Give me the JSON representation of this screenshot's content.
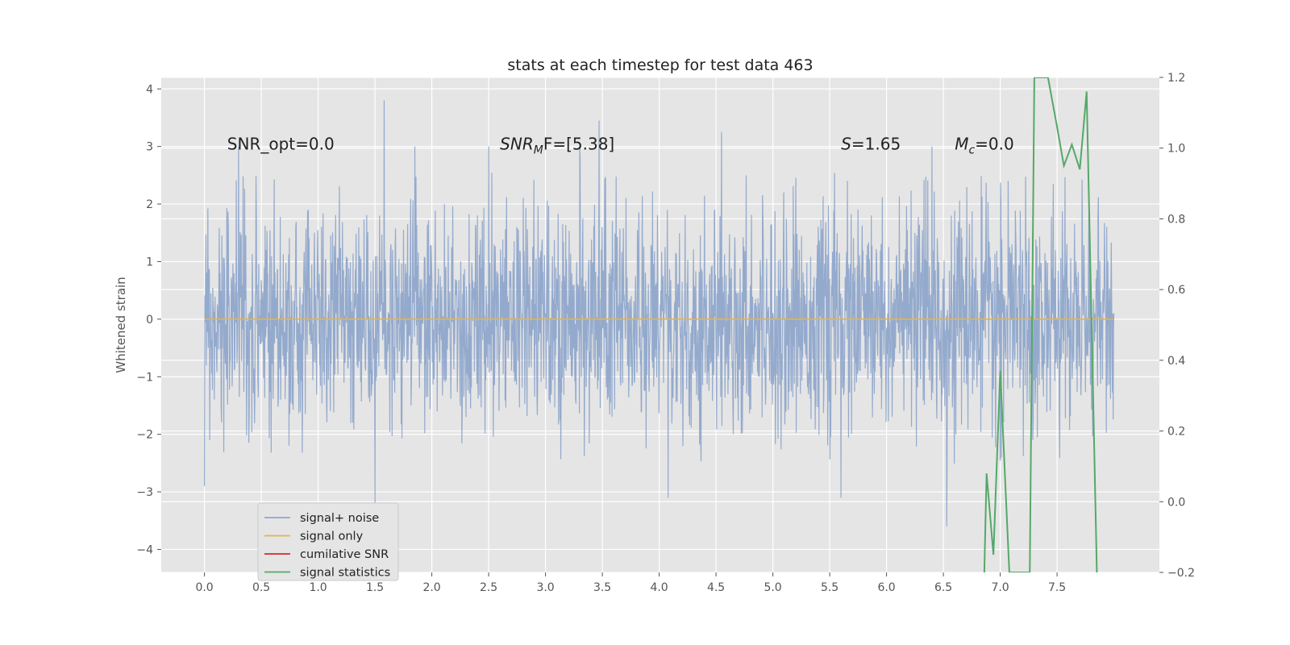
{
  "chart_data": {
    "type": "line",
    "title": "stats at each timestep for test data 463",
    "xlabel": "",
    "ylabel": "Whitened strain",
    "y2label": "",
    "xlim": [
      -0.38,
      8.4
    ],
    "ylim": [
      -4.4,
      4.2
    ],
    "y2lim": [
      -0.2,
      1.2
    ],
    "x_ticks": [
      0.0,
      0.5,
      1.0,
      1.5,
      2.0,
      2.5,
      3.0,
      3.5,
      4.0,
      4.5,
      5.0,
      5.5,
      6.0,
      6.5,
      7.0,
      7.5
    ],
    "x_tick_labels": [
      "0.0",
      "0.5",
      "1.0",
      "1.5",
      "2.0",
      "2.5",
      "3.0",
      "3.5",
      "4.0",
      "4.5",
      "5.0",
      "5.5",
      "6.0",
      "6.5",
      "7.0",
      "7.5"
    ],
    "y_ticks": [
      -4,
      -3,
      -2,
      -1,
      0,
      1,
      2,
      3,
      4
    ],
    "y_tick_labels": [
      "−4",
      "−3",
      "−2",
      "−1",
      "0",
      "1",
      "2",
      "3",
      "4"
    ],
    "y2_ticks": [
      -0.2,
      0.0,
      0.2,
      0.4,
      0.6,
      0.8,
      1.0,
      1.2
    ],
    "y2_tick_labels": [
      "−0.2",
      "0.0",
      "0.2",
      "0.4",
      "0.6",
      "0.8",
      "1.0",
      "1.2"
    ],
    "grid": true,
    "legend_position": "lower-left",
    "annotations": [
      {
        "x": 0.2,
        "y": 3.0,
        "text": "SNR_opt=0.0"
      },
      {
        "x": 2.6,
        "y": 3.0,
        "text": "SNR_MF=[5.38]",
        "main": "SNR",
        "sub": "M",
        "tail": "F=[5.38]"
      },
      {
        "x": 5.6,
        "y": 3.0,
        "text": "S=1.65",
        "main": "S",
        "tail": "=1.65"
      },
      {
        "x": 6.6,
        "y": 3.0,
        "text": "M_c=0.0",
        "main": "M",
        "sub": "c",
        "tail": "=0.0"
      }
    ],
    "series": [
      {
        "name": "signal+ noise",
        "color": "#8fa6cb",
        "axis": "left",
        "description": "dense whitened noise, approx. Gaussian, t from 0.0 to 8.0 s",
        "x_range": [
          0.0,
          8.0
        ],
        "envelope_upper": 2.0,
        "envelope_lower": -2.0,
        "peaks": [
          {
            "x": 0.0,
            "y": -2.9
          },
          {
            "x": 0.3,
            "y": 3.0
          },
          {
            "x": 1.58,
            "y": 3.8
          },
          {
            "x": 1.5,
            "y": -3.2
          },
          {
            "x": 1.85,
            "y": 3.0
          },
          {
            "x": 2.5,
            "y": 3.0
          },
          {
            "x": 3.47,
            "y": 3.45
          },
          {
            "x": 3.3,
            "y": 3.0
          },
          {
            "x": 4.08,
            "y": -3.1
          },
          {
            "x": 4.55,
            "y": 3.25
          },
          {
            "x": 5.6,
            "y": -3.1
          },
          {
            "x": 6.53,
            "y": -3.6
          },
          {
            "x": 6.4,
            "y": 3.0
          }
        ]
      },
      {
        "name": "signal only",
        "color": "#e8b34a",
        "axis": "left",
        "x": [
          0.0,
          8.0
        ],
        "y": [
          0.0,
          0.0
        ]
      },
      {
        "name": "cumilative SNR",
        "color": "#d62728",
        "axis": "right",
        "x": [],
        "y": []
      },
      {
        "name": "signal statistics",
        "color": "#55a868",
        "axis": "right",
        "x": [
          6.86,
          6.88,
          6.94,
          7.0,
          7.08,
          7.26,
          7.3,
          7.42,
          7.5,
          7.56,
          7.63,
          7.7,
          7.76,
          7.85
        ],
        "y": [
          -0.2,
          0.08,
          -0.15,
          0.37,
          -0.2,
          -0.2,
          1.2,
          1.2,
          1.06,
          0.95,
          1.01,
          0.94,
          1.16,
          -0.2
        ]
      }
    ]
  }
}
